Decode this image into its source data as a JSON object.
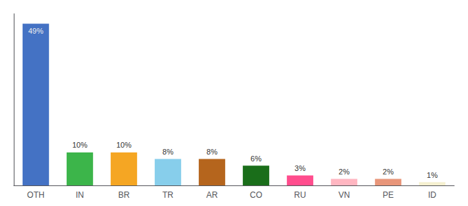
{
  "chart_data": {
    "type": "bar",
    "categories": [
      "OTH",
      "IN",
      "BR",
      "TR",
      "AR",
      "CO",
      "RU",
      "VN",
      "PE",
      "ID"
    ],
    "values": [
      49,
      10,
      10,
      8,
      8,
      6,
      3,
      2,
      2,
      1
    ],
    "value_labels": [
      "49%",
      "10%",
      "10%",
      "8%",
      "8%",
      "6%",
      "3%",
      "2%",
      "2%",
      "1%"
    ],
    "colors": [
      "#4472c4",
      "#3cb54a",
      "#f5a623",
      "#87ceeb",
      "#b5651d",
      "#1a6e1a",
      "#ff4d8d",
      "#ffb6c1",
      "#e8967a",
      "#f5f0d0"
    ],
    "ylim": [
      0,
      52
    ],
    "data_labels": true,
    "tick_labels": "x",
    "grid": false
  }
}
